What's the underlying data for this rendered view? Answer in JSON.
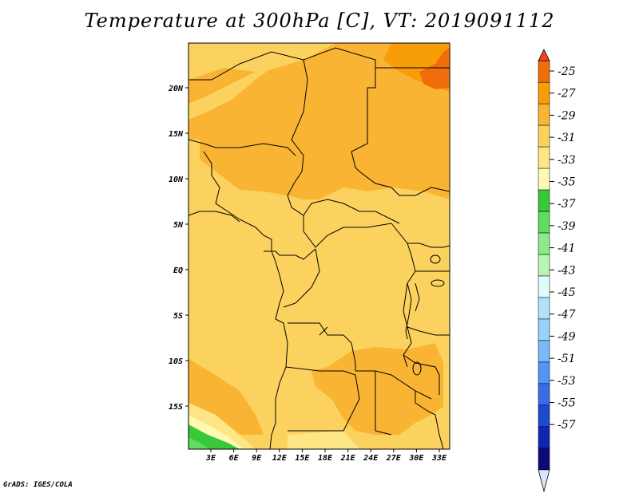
{
  "title": "Temperature at 300hPa [C], VT: 2019091112",
  "credit": "GrADS: IGES/COLA",
  "map": {
    "lat_ticks": [
      "20N",
      "15N",
      "10N",
      "5N",
      "EQ",
      "5S",
      "10S",
      "15S"
    ],
    "lon_ticks": [
      "3E",
      "6E",
      "9E",
      "12E",
      "15E",
      "18E",
      "21E",
      "24E",
      "27E",
      "30E",
      "33E"
    ]
  },
  "colorbar": {
    "labels": [
      "-25",
      "-27",
      "-29",
      "-31",
      "-33",
      "-35",
      "-37",
      "-39",
      "-41",
      "-43",
      "-45",
      "-47",
      "-49",
      "-51",
      "-53",
      "-55",
      "-57"
    ],
    "colors": [
      "#f0461e",
      "#f06e0a",
      "#f79d08",
      "#fab433",
      "#fcd25f",
      "#fee686",
      "#fef9b4",
      "#37c937",
      "#61dc61",
      "#8cea8a",
      "#b6f5b4",
      "#e1fcf8",
      "#b4e1fa",
      "#96d2f9",
      "#78b9fa",
      "#5096f6",
      "#3c6be6",
      "#1f48cf",
      "#0f26af",
      "#0a0a78",
      "#e1e1ff"
    ]
  }
}
